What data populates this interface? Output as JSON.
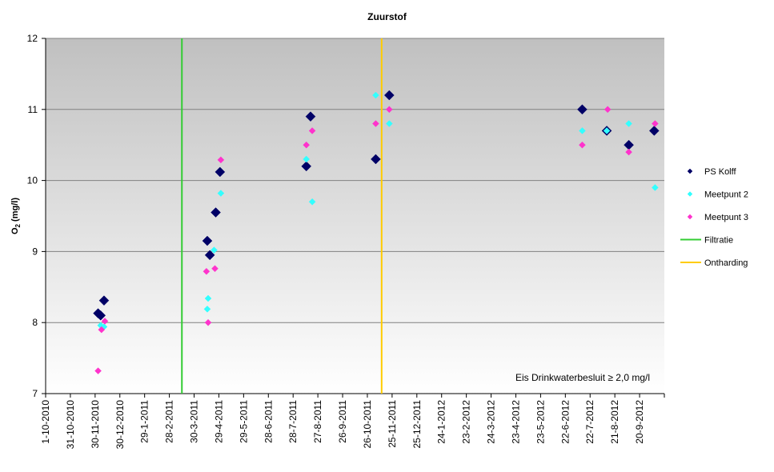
{
  "chart_data": {
    "type": "scatter",
    "title": "Zuurstof",
    "ylabel_main": "O",
    "ylabel_sub": "2",
    "ylabel_unit": " (mg/l)",
    "xlabel": "",
    "ylim": [
      7,
      12
    ],
    "yticks": [
      7,
      8,
      9,
      10,
      11,
      12
    ],
    "xlim": [
      "2010-10-01",
      "2012-10-01"
    ],
    "xticks": [
      "1-10-2010",
      "31-10-2010",
      "30-11-2010",
      "30-12-2010",
      "29-1-2011",
      "28-2-2011",
      "30-3-2011",
      "29-4-2011",
      "29-5-2011",
      "28-6-2011",
      "28-7-2011",
      "27-8-2011",
      "26-9-2011",
      "26-10-2011",
      "25-11-2011",
      "25-12-2011",
      "24-1-2012",
      "23-2-2012",
      "24-3-2012",
      "23-4-2012",
      "23-5-2012",
      "22-6-2012",
      "22-7-2012",
      "21-8-2012",
      "20-9-2012"
    ],
    "grid": true,
    "legend_position": "right",
    "annotation": "Eis Drinkwaterbesluit ≥ 2,0 mg/l",
    "series": [
      {
        "name": "PS Kolff",
        "marker": "diamond-large",
        "color": "#000066",
        "x": [
          "2010-12-02",
          "2010-12-05",
          "2010-12-09",
          "2011-04-13",
          "2011-04-10",
          "2011-04-20",
          "2011-04-25",
          "2011-08-05",
          "2011-08-10",
          "2011-10-26",
          "2011-11-11",
          "2012-06-26",
          "2012-07-25",
          "2012-08-20",
          "2012-09-19"
        ],
        "y": [
          8.13,
          8.1,
          8.31,
          8.95,
          9.15,
          9.55,
          10.12,
          10.2,
          10.9,
          10.3,
          11.2,
          11.0,
          10.7,
          10.5,
          10.7
        ]
      },
      {
        "name": "Meetpunt 2",
        "marker": "diamond",
        "color": "#33ffff",
        "x": [
          "2010-12-05",
          "2010-12-09",
          "2011-04-10",
          "2011-04-11",
          "2011-04-18",
          "2011-04-26",
          "2011-08-05",
          "2011-08-12",
          "2011-10-26",
          "2011-11-11",
          "2012-06-26",
          "2012-07-25",
          "2012-08-20",
          "2012-09-20"
        ],
        "y": [
          7.96,
          7.94,
          8.19,
          8.34,
          9.02,
          9.82,
          10.3,
          9.7,
          11.2,
          10.8,
          10.7,
          10.7,
          10.8,
          9.9
        ]
      },
      {
        "name": "Meetpunt 3",
        "marker": "diamond",
        "color": "#ff33cc",
        "x": [
          "2010-12-02",
          "2010-12-06",
          "2010-12-10",
          "2011-04-09",
          "2011-04-11",
          "2011-04-19",
          "2011-04-26",
          "2011-08-05",
          "2011-08-12",
          "2011-10-26",
          "2011-11-11",
          "2012-06-26",
          "2012-07-26",
          "2012-08-20",
          "2012-09-20"
        ],
        "y": [
          7.32,
          7.9,
          8.02,
          8.72,
          8.0,
          8.76,
          10.29,
          10.5,
          10.7,
          10.8,
          11.0,
          10.5,
          11.0,
          10.4,
          10.8
        ]
      }
    ],
    "lines": [
      {
        "name": "Filtratie",
        "date": "2011-03-11",
        "color": "#33cc33"
      },
      {
        "name": "Ontharding",
        "date": "2011-11-02",
        "color": "#ffcc00"
      }
    ]
  },
  "colors": {
    "plot_bg_top": "#c0c0c0",
    "plot_bg_bottom": "#ffffff",
    "gridline": "#808080"
  }
}
